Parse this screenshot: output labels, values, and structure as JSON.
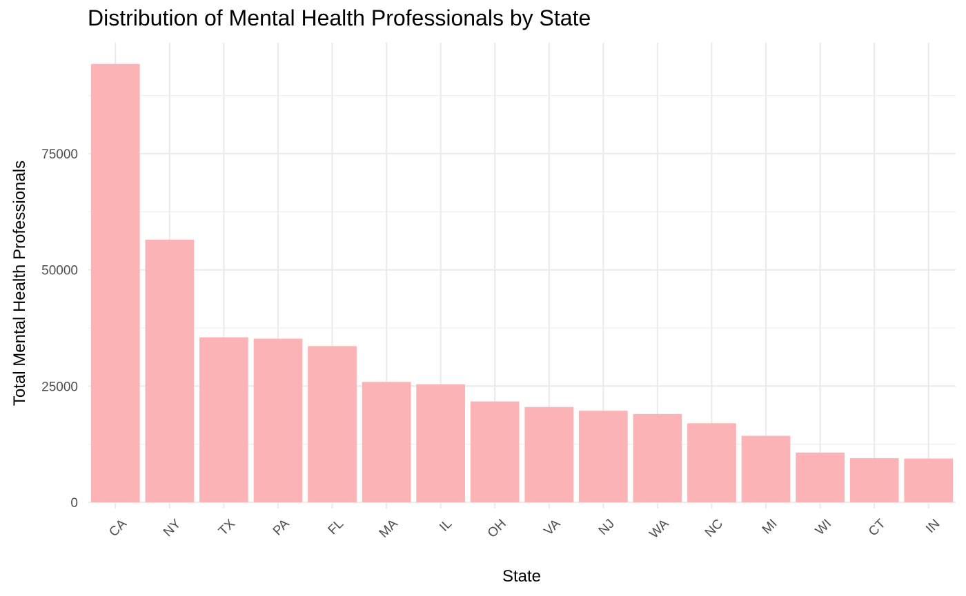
{
  "chart_data": {
    "type": "bar",
    "title": "Distribution of Mental Health Professionals by State",
    "xlabel": "State",
    "ylabel": "Total Mental Health Professionals",
    "categories": [
      "CA",
      "NY",
      "TX",
      "PA",
      "FL",
      "MA",
      "IL",
      "OH",
      "VA",
      "NJ",
      "WA",
      "NC",
      "MI",
      "WI",
      "CT",
      "IN"
    ],
    "values": [
      94300,
      56500,
      35500,
      35200,
      33600,
      25900,
      25400,
      21700,
      20500,
      19700,
      19000,
      17000,
      14300,
      10700,
      9500,
      9400
    ],
    "ylim": [
      0,
      98000
    ],
    "yticks": [
      0,
      25000,
      50000,
      75000
    ],
    "ytick_labels": [
      "0",
      "25000",
      "50000",
      "75000"
    ],
    "grid": true,
    "bar_color": "#FCB3B5",
    "grid_color": "#EBEBEB"
  }
}
